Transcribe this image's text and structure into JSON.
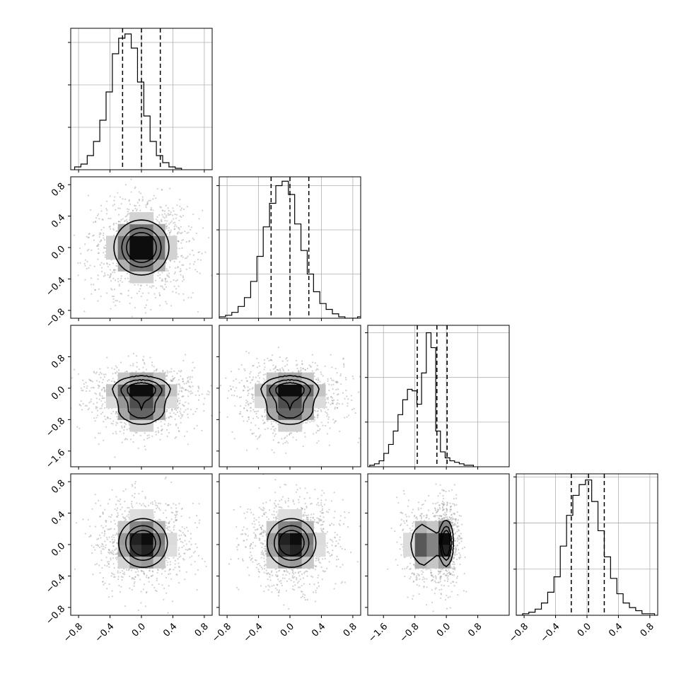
{
  "chart_data": {
    "type": "corner",
    "panels": [
      {
        "id": "hist-p0",
        "type": "histogram",
        "row": 0,
        "col": 0,
        "xlim": [
          -0.9,
          0.9
        ],
        "bin_start": -0.85,
        "bin_width": 0.08,
        "counts": [
          2,
          4,
          10,
          20,
          35,
          55,
          82,
          93,
          96,
          86,
          62,
          38,
          20,
          10,
          5,
          2,
          1
        ],
        "ymax": 100,
        "quantiles": [
          -0.24,
          0.0,
          0.24
        ],
        "y_ticks": [
          30,
          60,
          90
        ],
        "x_ticks": []
      },
      {
        "id": "hist-p1",
        "type": "histogram",
        "row": 1,
        "col": 1,
        "xlim": [
          -0.9,
          0.9
        ],
        "bin_start": -0.9,
        "bin_width": 0.08,
        "counts": [
          1,
          2,
          4,
          8,
          14,
          25,
          42,
          62,
          78,
          90,
          93,
          84,
          64,
          46,
          30,
          18,
          10,
          6,
          3,
          1,
          0,
          0,
          1
        ],
        "ymax": 96,
        "quantiles": [
          -0.24,
          0.0,
          0.24
        ],
        "y_ticks": [
          30,
          60,
          90
        ],
        "x_ticks": []
      },
      {
        "id": "hist-p2",
        "type": "histogram",
        "row": 2,
        "col": 2,
        "xlim": [
          -2.0,
          1.6
        ],
        "bin_start": -1.95,
        "bin_width": 0.12,
        "counts": [
          1,
          2,
          4,
          9,
          15,
          24,
          35,
          45,
          52,
          51,
          42,
          63,
          90,
          80,
          24,
          10,
          6,
          4,
          3,
          2,
          1,
          1
        ],
        "ymax": 95,
        "quantiles": [
          -0.74,
          -0.24,
          0.02
        ],
        "y_ticks": [
          30,
          60,
          90
        ],
        "x_ticks": []
      },
      {
        "id": "hist-p3",
        "type": "histogram",
        "row": 3,
        "col": 3,
        "xlim": [
          -0.9,
          0.9
        ],
        "bin_start": -0.9,
        "bin_width": 0.08,
        "counts": [
          0,
          1,
          2,
          4,
          8,
          15,
          25,
          45,
          65,
          78,
          85,
          88,
          74,
          55,
          38,
          24,
          14,
          8,
          5,
          3,
          1,
          1
        ],
        "ymax": 92,
        "quantiles": [
          -0.2,
          0.02,
          0.22
        ],
        "y_ticks": [
          30,
          60,
          90
        ],
        "x_ticks": [
          "-0.8",
          "-0.4",
          "0.0",
          "0.4",
          "0.8"
        ]
      },
      {
        "id": "density-p0-p1",
        "type": "density2d",
        "row": 1,
        "col": 0,
        "xlim": [
          -0.9,
          0.9
        ],
        "ylim": [
          -0.9,
          0.9
        ],
        "peaks": [
          {
            "cx": 0.0,
            "cy": 0.0,
            "sx": 0.2,
            "sy": 0.2,
            "w": 1.0
          }
        ],
        "levels": [
          0.3,
          0.6,
          0.85
        ]
      },
      {
        "id": "density-p0-p2",
        "type": "density2d",
        "row": 2,
        "col": 0,
        "xlim": [
          -0.9,
          0.9
        ],
        "ylim": [
          -2.0,
          1.6
        ],
        "peaks": [
          {
            "cx": 0.0,
            "cy": -0.02,
            "sx": 0.22,
            "sy": 0.2,
            "w": 1.0
          },
          {
            "cx": 0.0,
            "cy": -0.55,
            "sx": 0.2,
            "sy": 0.25,
            "w": 0.75
          }
        ],
        "levels": [
          0.3,
          0.6,
          0.85
        ]
      },
      {
        "id": "density-p1-p2",
        "type": "density2d",
        "row": 2,
        "col": 1,
        "xlim": [
          -0.9,
          0.9
        ],
        "ylim": [
          -2.0,
          1.6
        ],
        "peaks": [
          {
            "cx": 0.0,
            "cy": -0.02,
            "sx": 0.22,
            "sy": 0.2,
            "w": 1.0
          },
          {
            "cx": 0.0,
            "cy": -0.55,
            "sx": 0.2,
            "sy": 0.25,
            "w": 0.75
          }
        ],
        "levels": [
          0.3,
          0.6,
          0.85
        ]
      },
      {
        "id": "density-p0-p3",
        "type": "density2d",
        "row": 3,
        "col": 0,
        "xlim": [
          -0.9,
          0.9
        ],
        "ylim": [
          -0.9,
          0.9
        ],
        "peaks": [
          {
            "cx": 0.02,
            "cy": 0.02,
            "sx": 0.18,
            "sy": 0.18,
            "w": 1.0
          }
        ],
        "levels": [
          0.3,
          0.6,
          0.85
        ]
      },
      {
        "id": "density-p1-p3",
        "type": "density2d",
        "row": 3,
        "col": 1,
        "xlim": [
          -0.9,
          0.9
        ],
        "ylim": [
          -0.9,
          0.9
        ],
        "peaks": [
          {
            "cx": 0.02,
            "cy": 0.02,
            "sx": 0.18,
            "sy": 0.18,
            "w": 1.0
          }
        ],
        "levels": [
          0.3,
          0.6,
          0.85
        ]
      },
      {
        "id": "density-p2-p3",
        "type": "density2d",
        "row": 3,
        "col": 2,
        "xlim": [
          -2.0,
          1.6
        ],
        "ylim": [
          -0.9,
          0.9
        ],
        "peaks": [
          {
            "cx": 0.0,
            "cy": 0.02,
            "sx": 0.1,
            "sy": 0.17,
            "w": 1.0
          },
          {
            "cx": -0.55,
            "cy": 0.0,
            "sx": 0.22,
            "sy": 0.17,
            "w": 0.75
          }
        ],
        "levels": [
          0.3,
          0.6,
          0.85
        ]
      }
    ],
    "column_x_ticks": [
      {
        "values": [
          -0.8,
          -0.4,
          0.0,
          0.4,
          0.8
        ],
        "labels": [
          "-0.8",
          "-0.4",
          "0.0",
          "0.4",
          "0.8"
        ]
      },
      {
        "values": [
          -0.8,
          -0.4,
          0.0,
          0.4,
          0.8
        ],
        "labels": [
          "-0.8",
          "-0.4",
          "0.0",
          "0.4",
          "0.8"
        ]
      },
      {
        "values": [
          -1.6,
          -0.8,
          0.0,
          0.8
        ],
        "labels": [
          "-1.6",
          "-0.8",
          "0.0",
          "0.8"
        ]
      },
      {
        "values": [
          -0.8,
          -0.4,
          0.0,
          0.4,
          0.8
        ],
        "labels": [
          "-0.8",
          "-0.4",
          "0.0",
          "0.4",
          "0.8"
        ]
      }
    ],
    "row_y_ticks": [
      null,
      {
        "values": [
          -0.8,
          -0.4,
          0.0,
          0.4,
          0.8
        ],
        "labels": [
          "-0.8",
          "-0.4",
          "0.0",
          "0.4",
          "0.8"
        ]
      },
      {
        "values": [
          -1.6,
          -0.8,
          0.0,
          0.8
        ],
        "labels": [
          "-1.6",
          "-0.8",
          "0.0",
          "0.8"
        ]
      },
      {
        "values": [
          -0.8,
          -0.4,
          0.0,
          0.4,
          0.8
        ],
        "labels": [
          "-0.8",
          "-0.4",
          "0.0",
          "0.4",
          "0.8"
        ]
      }
    ],
    "grid": true,
    "colors": {
      "line": "#000000",
      "grid": "#b0b0b0",
      "scatter": "#9a9a9a",
      "density_dark": "#000000",
      "density_light": "#ffffff"
    }
  }
}
